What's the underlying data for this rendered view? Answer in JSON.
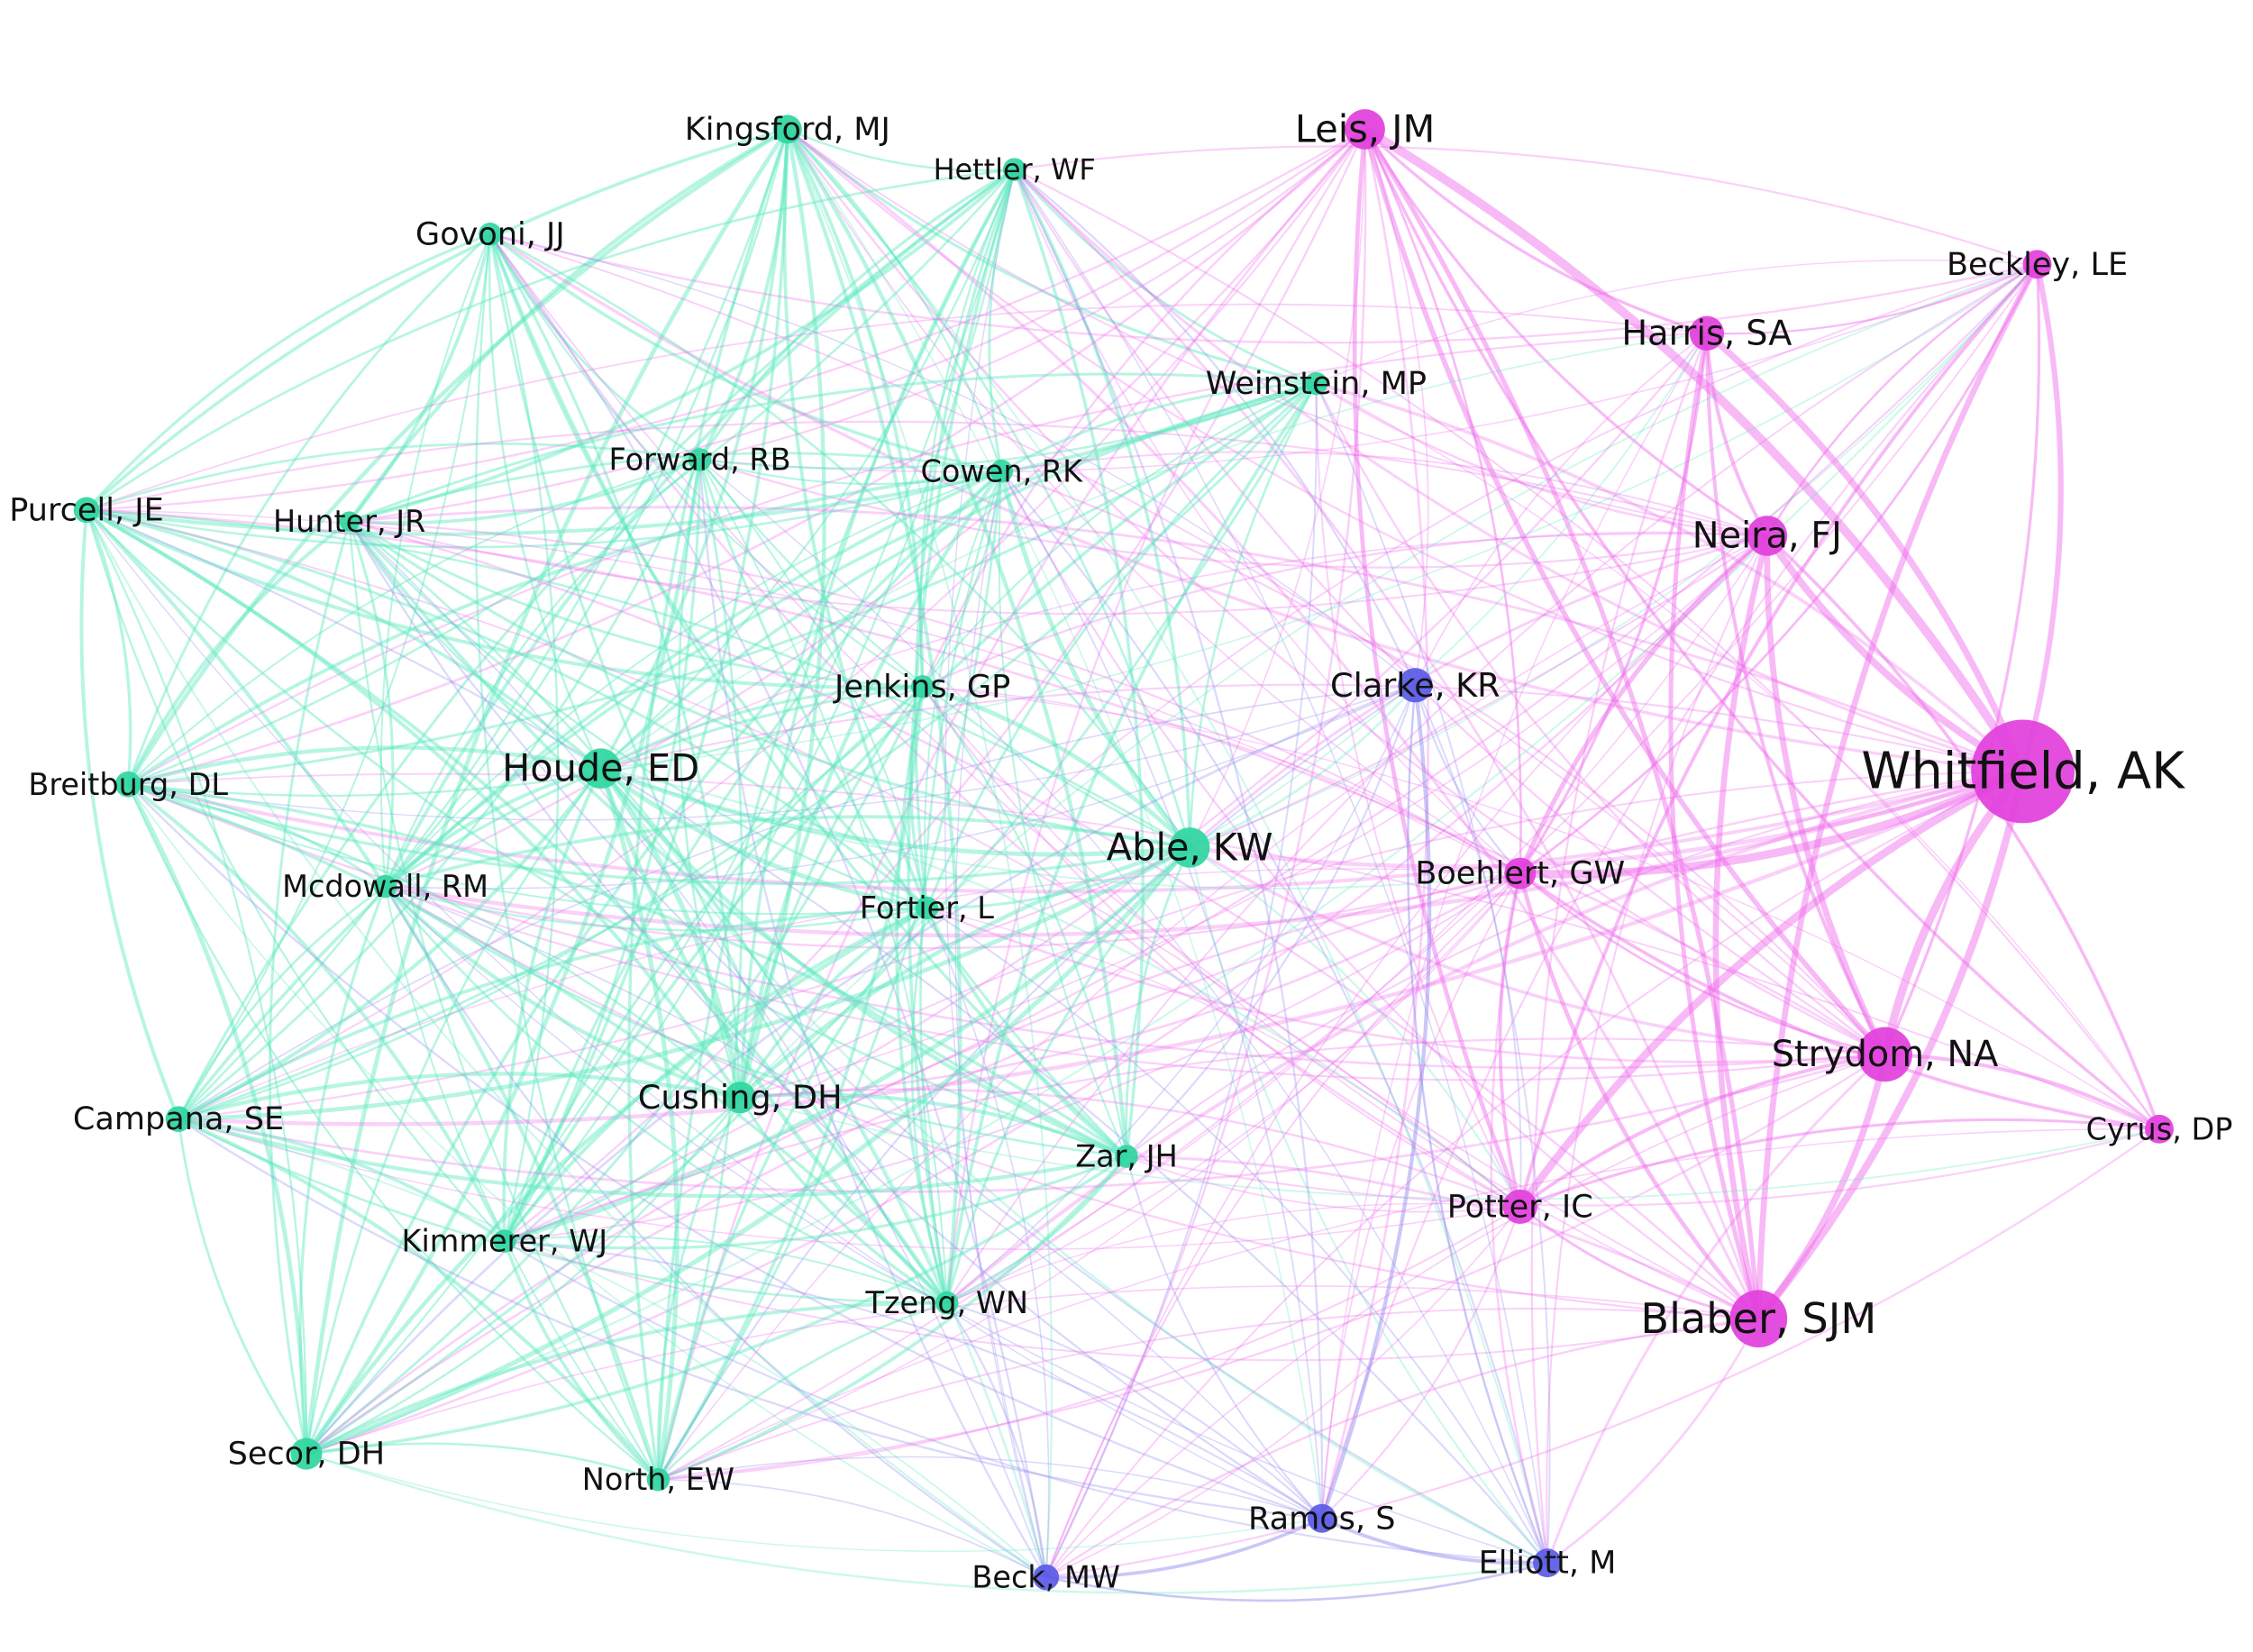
{
  "clusters": {
    "green": {
      "node": "#2fd6a0",
      "edge": "#5ee8bf"
    },
    "pink": {
      "node": "#e23fdc",
      "edge": "#f066ec"
    },
    "blue": {
      "node": "#5a5ae6",
      "edge": "#8a86ee"
    }
  },
  "nodes": [
    {
      "label": "Kingsford, MJ",
      "cluster": "green"
    },
    {
      "label": "Hettler, WF",
      "cluster": "green"
    },
    {
      "label": "Govoni, JJ",
      "cluster": "green"
    },
    {
      "label": "Leis, JM",
      "cluster": "pink"
    },
    {
      "label": "Beckley, LE",
      "cluster": "pink"
    },
    {
      "label": "Harris, SA",
      "cluster": "pink"
    },
    {
      "label": "Weinstein, MP",
      "cluster": "green"
    },
    {
      "label": "Forward, RB",
      "cluster": "green"
    },
    {
      "label": "Cowen, RK",
      "cluster": "green"
    },
    {
      "label": "Purcell, JE",
      "cluster": "green"
    },
    {
      "label": "Hunter, JR",
      "cluster": "green"
    },
    {
      "label": "Neira, FJ",
      "cluster": "pink"
    },
    {
      "label": "Jenkins, GP",
      "cluster": "green"
    },
    {
      "label": "Clarke, KR",
      "cluster": "blue"
    },
    {
      "label": "Whitfield, AK",
      "cluster": "pink"
    },
    {
      "label": "Houde, ED",
      "cluster": "green"
    },
    {
      "label": "Breitburg, DL",
      "cluster": "green"
    },
    {
      "label": "Able, KW",
      "cluster": "green"
    },
    {
      "label": "Boehlert, GW",
      "cluster": "pink"
    },
    {
      "label": "Mcdowall, RM",
      "cluster": "green"
    },
    {
      "label": "Fortier, L",
      "cluster": "green"
    },
    {
      "label": "Strydom, NA",
      "cluster": "pink"
    },
    {
      "label": "Cyrus, DP",
      "cluster": "pink"
    },
    {
      "label": "Campana, SE",
      "cluster": "green"
    },
    {
      "label": "Cushing, DH",
      "cluster": "green"
    },
    {
      "label": "Zar, JH",
      "cluster": "green"
    },
    {
      "label": "Potter, IC",
      "cluster": "pink"
    },
    {
      "label": "Kimmerer, WJ",
      "cluster": "green"
    },
    {
      "label": "Tzeng, WN",
      "cluster": "green"
    },
    {
      "label": "Blaber, SJM",
      "cluster": "pink"
    },
    {
      "label": "Secor, DH",
      "cluster": "green"
    },
    {
      "label": "North, EW",
      "cluster": "green"
    },
    {
      "label": "Ramos, S",
      "cluster": "blue"
    },
    {
      "label": "Elliott, M",
      "cluster": "blue"
    },
    {
      "label": "Beck, MW",
      "cluster": "blue"
    }
  ]
}
